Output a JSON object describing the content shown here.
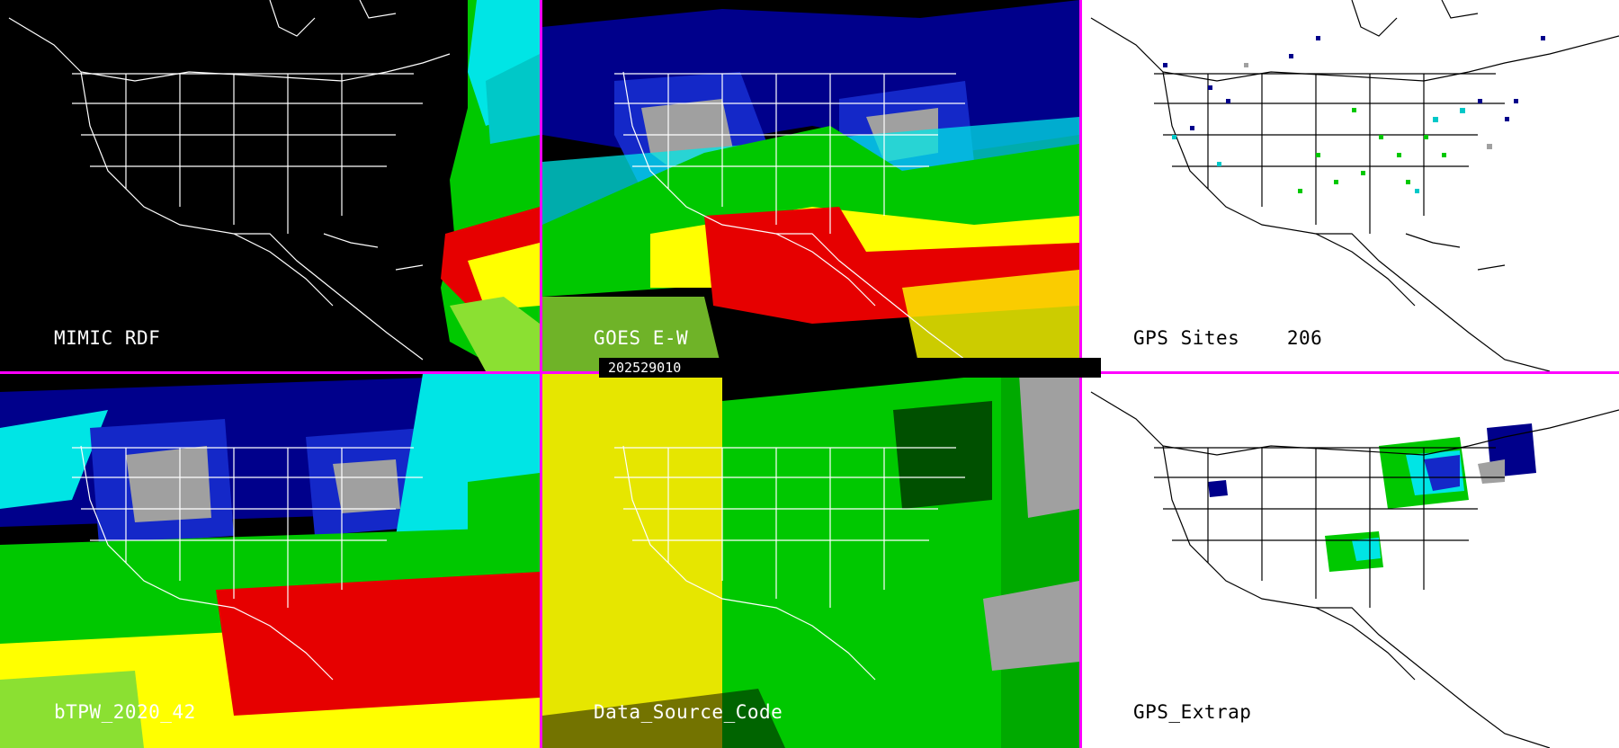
{
  "panels": {
    "mimic_rdf": {
      "label": "MIMIC RDF"
    },
    "goes_ew": {
      "label": "GOES E-W"
    },
    "gps_sites": {
      "label": "GPS Sites",
      "count": "206"
    },
    "btpw": {
      "label": "bTPW_2020_42"
    },
    "data_source": {
      "label": "Data_Source_Code"
    },
    "gps_extrap": {
      "label": "GPS_Extrap"
    }
  },
  "timestamp": "202529010",
  "colors": {
    "divider": "#ff00ff",
    "tpw_scale": [
      "#808080",
      "#00008b",
      "#1428c8",
      "#00e5e5",
      "#00c800",
      "#8be032",
      "#ffff00",
      "#e60000"
    ],
    "source_codes": [
      "#e6e600",
      "#00c800",
      "#a0a0a0"
    ]
  }
}
